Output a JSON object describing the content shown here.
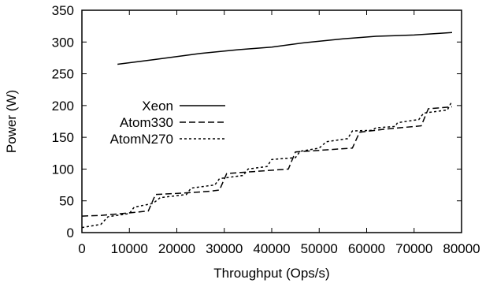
{
  "chart_data": {
    "type": "line",
    "title": "",
    "xlabel": "Throughput (Ops/s)",
    "ylabel": "Power (W)",
    "xlim": [
      0,
      80000
    ],
    "ylim": [
      0,
      350
    ],
    "xticks": [
      0,
      10000,
      20000,
      30000,
      40000,
      50000,
      60000,
      70000,
      80000
    ],
    "yticks": [
      0,
      50,
      100,
      150,
      200,
      250,
      300,
      350
    ],
    "grid": false,
    "legend_position": "center-left",
    "series": [
      {
        "name": "Xeon",
        "style": "solid",
        "color": "#000000",
        "points": [
          [
            7500,
            265
          ],
          [
            15000,
            272
          ],
          [
            25000,
            282
          ],
          [
            33000,
            288
          ],
          [
            40000,
            292
          ],
          [
            47000,
            299
          ],
          [
            55000,
            305
          ],
          [
            62000,
            309
          ],
          [
            70000,
            311
          ],
          [
            78000,
            315
          ]
        ]
      },
      {
        "name": "Atom330",
        "style": "dashed",
        "color": "#000000",
        "points": [
          [
            0,
            26
          ],
          [
            4000,
            27
          ],
          [
            10000,
            31
          ],
          [
            14000,
            34
          ],
          [
            15500,
            60
          ],
          [
            21000,
            62
          ],
          [
            27000,
            65
          ],
          [
            29000,
            67
          ],
          [
            30500,
            93
          ],
          [
            36000,
            96
          ],
          [
            43500,
            100
          ],
          [
            45000,
            127
          ],
          [
            51000,
            130
          ],
          [
            57000,
            133
          ],
          [
            58500,
            158
          ],
          [
            64000,
            163
          ],
          [
            71500,
            168
          ],
          [
            73000,
            195
          ],
          [
            78000,
            198
          ]
        ]
      },
      {
        "name": "AtomN270",
        "style": "dotted",
        "color": "#000000",
        "points": [
          [
            0,
            8
          ],
          [
            4000,
            13
          ],
          [
            5500,
            25
          ],
          [
            10000,
            30
          ],
          [
            11000,
            40
          ],
          [
            15000,
            46
          ],
          [
            16500,
            55
          ],
          [
            22000,
            60
          ],
          [
            23000,
            70
          ],
          [
            28000,
            75
          ],
          [
            29000,
            85
          ],
          [
            34000,
            90
          ],
          [
            35000,
            100
          ],
          [
            39000,
            104
          ],
          [
            40000,
            115
          ],
          [
            45000,
            118
          ],
          [
            46000,
            128
          ],
          [
            50000,
            133
          ],
          [
            51500,
            143
          ],
          [
            56000,
            148
          ],
          [
            57000,
            160
          ],
          [
            61000,
            161
          ],
          [
            62000,
            165
          ],
          [
            66000,
            167
          ],
          [
            66500,
            173
          ],
          [
            71000,
            178
          ],
          [
            72000,
            188
          ],
          [
            77000,
            193
          ],
          [
            78000,
            207
          ]
        ]
      }
    ]
  }
}
